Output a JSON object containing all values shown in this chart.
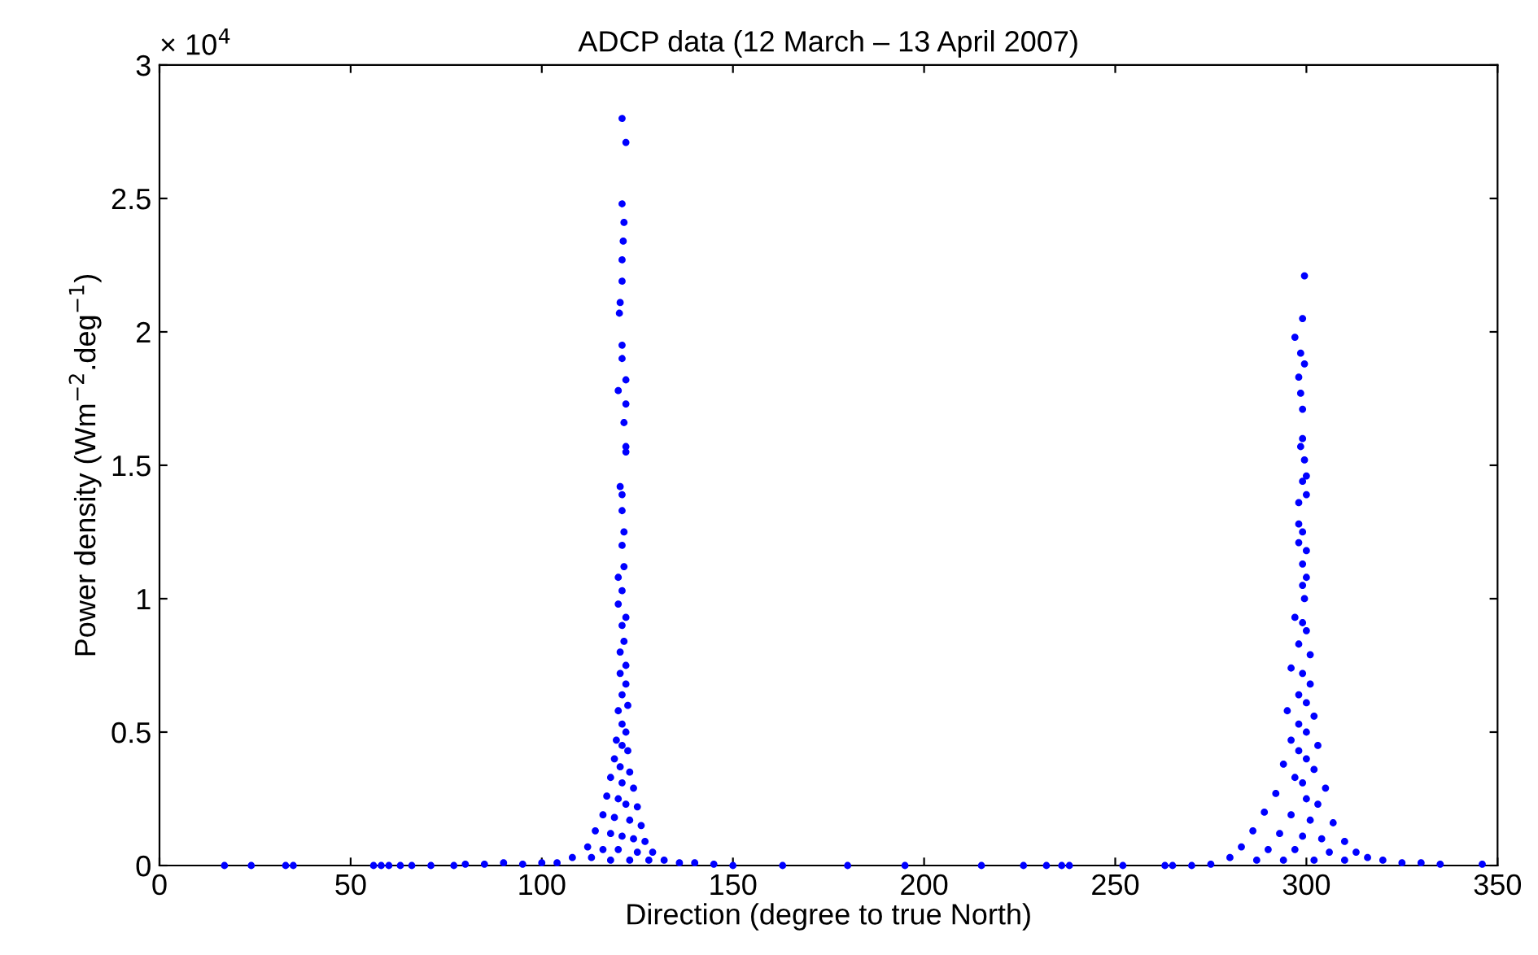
{
  "chart_data": {
    "type": "scatter",
    "title": "ADCP data (12 March – 13 April 2007)",
    "xlabel": "Direction (degree to true North)",
    "ylabel": "Power density (Wm$^{−2}$.deg$^{−1}$)",
    "annotations": [
      "× 10$^{4}$"
    ],
    "xlim": [
      0,
      350
    ],
    "xticks": [
      0,
      50,
      100,
      150,
      200,
      250,
      300,
      350
    ],
    "ylim": [
      0,
      3
    ],
    "yticks": [
      0,
      0.5,
      1,
      1.5,
      2,
      2.5,
      3
    ],
    "grid": false,
    "marker": "circle",
    "series": [
      {
        "color": "#0000ff",
        "x": [
          121,
          122,
          121,
          121.5,
          121.3,
          121,
          121,
          120.5,
          120.3,
          121,
          121,
          122,
          120,
          122,
          121.5,
          122,
          122,
          120.5,
          121,
          121,
          121.5,
          121,
          121.5,
          120,
          121,
          120,
          122,
          121,
          121.5,
          120.5,
          122,
          120.5,
          122,
          121,
          122.5,
          120,
          121,
          122,
          119.5,
          121,
          122.5,
          119,
          120.5,
          123,
          118,
          121,
          124,
          117,
          120,
          122,
          125,
          116,
          119,
          123,
          126,
          114,
          118,
          121,
          124,
          127,
          112,
          116,
          120,
          125,
          129,
          108,
          113,
          118,
          123,
          128,
          132,
          136,
          140,
          104,
          100,
          95,
          90,
          85,
          80,
          145,
          17,
          24,
          33,
          35,
          56,
          58,
          60,
          63,
          66,
          71,
          77,
          150,
          163,
          180,
          195,
          215,
          226,
          232,
          236,
          238,
          252,
          263,
          265,
          270,
          275,
          299.5,
          299,
          297,
          298.5,
          299.5,
          298,
          298.5,
          299,
          299,
          298.5,
          299.5,
          300,
          299,
          300,
          298,
          298,
          299,
          298,
          300,
          299,
          300,
          299,
          299.5,
          297,
          299,
          300,
          298,
          301,
          296,
          299,
          301,
          298,
          300,
          295,
          302,
          298,
          300,
          296,
          303,
          298,
          300,
          294,
          302,
          297,
          299,
          305,
          292,
          300,
          303,
          289,
          296,
          301,
          307,
          286,
          293,
          299,
          304,
          310,
          283,
          290,
          297,
          306,
          313,
          280,
          287,
          294,
          302,
          310,
          316,
          320,
          325,
          330,
          335,
          346
        ],
        "values": [
          2.8,
          2.71,
          2.48,
          2.41,
          2.34,
          2.27,
          2.19,
          2.11,
          2.07,
          1.95,
          1.9,
          1.82,
          1.78,
          1.73,
          1.66,
          1.57,
          1.55,
          1.42,
          1.39,
          1.33,
          1.25,
          1.2,
          1.12,
          1.08,
          1.03,
          0.98,
          0.93,
          0.9,
          0.84,
          0.8,
          0.75,
          0.72,
          0.68,
          0.64,
          0.6,
          0.58,
          0.53,
          0.5,
          0.47,
          0.45,
          0.43,
          0.4,
          0.37,
          0.35,
          0.33,
          0.31,
          0.29,
          0.26,
          0.25,
          0.23,
          0.22,
          0.19,
          0.18,
          0.17,
          0.15,
          0.13,
          0.12,
          0.11,
          0.1,
          0.09,
          0.07,
          0.06,
          0.06,
          0.05,
          0.05,
          0.03,
          0.03,
          0.02,
          0.02,
          0.02,
          0.02,
          0.01,
          0.01,
          0.01,
          0.01,
          0.005,
          0.01,
          0.005,
          0.005,
          0.005,
          0,
          0,
          0,
          0,
          0,
          0,
          0,
          0,
          0,
          0,
          0,
          0,
          0,
          0,
          0,
          0,
          0,
          0,
          0,
          0,
          0,
          0,
          0,
          0,
          0.005,
          2.21,
          2.05,
          1.98,
          1.92,
          1.88,
          1.83,
          1.77,
          1.71,
          1.6,
          1.57,
          1.52,
          1.46,
          1.44,
          1.39,
          1.36,
          1.28,
          1.25,
          1.21,
          1.18,
          1.13,
          1.08,
          1.05,
          1.0,
          0.93,
          0.91,
          0.88,
          0.83,
          0.79,
          0.74,
          0.72,
          0.68,
          0.64,
          0.61,
          0.58,
          0.56,
          0.53,
          0.5,
          0.47,
          0.45,
          0.43,
          0.4,
          0.38,
          0.36,
          0.33,
          0.31,
          0.29,
          0.27,
          0.25,
          0.23,
          0.2,
          0.19,
          0.17,
          0.16,
          0.13,
          0.12,
          0.11,
          0.1,
          0.09,
          0.07,
          0.06,
          0.06,
          0.05,
          0.05,
          0.03,
          0.02,
          0.02,
          0.02,
          0.02,
          0.03,
          0.02,
          0.01,
          0.01,
          0.005,
          0.005
        ]
      }
    ]
  }
}
